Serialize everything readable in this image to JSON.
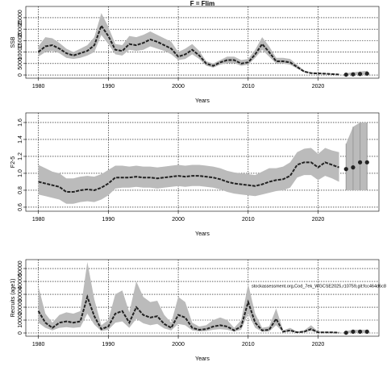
{
  "chart_data": [
    {
      "type": "line",
      "title": "F = Flim",
      "ylabel": "SSB",
      "xlabel": "Years",
      "x": [
        1980,
        1981,
        1982,
        1983,
        1984,
        1985,
        1986,
        1987,
        1988,
        1989,
        1990,
        1991,
        1992,
        1993,
        1994,
        1995,
        1996,
        1997,
        1998,
        1999,
        2000,
        2001,
        2002,
        2003,
        2004,
        2005,
        2006,
        2007,
        2008,
        2009,
        2010,
        2011,
        2012,
        2013,
        2014,
        2015,
        2016,
        2017,
        2018,
        2019,
        2020,
        2021,
        2022,
        2023
      ],
      "values": [
        10000,
        12500,
        13000,
        11500,
        9500,
        8500,
        9500,
        10500,
        13000,
        21500,
        17000,
        11000,
        10500,
        13500,
        13000,
        14000,
        15500,
        14500,
        13000,
        11500,
        8000,
        9000,
        11000,
        8500,
        5000,
        4000,
        5500,
        6500,
        6500,
        5000,
        5500,
        9000,
        13500,
        10000,
        6000,
        6000,
        5500,
        3500,
        1500,
        800,
        700,
        600,
        400,
        200
      ],
      "lower": [
        8000,
        10000,
        10500,
        9500,
        7500,
        7000,
        7500,
        8500,
        10000,
        17500,
        13500,
        9000,
        8500,
        11000,
        10500,
        11000,
        12500,
        11500,
        10500,
        9000,
        6500,
        7000,
        9000,
        7000,
        4000,
        3200,
        4500,
        5200,
        5200,
        4000,
        4500,
        7500,
        11000,
        8000,
        5000,
        5000,
        4500,
        2800,
        1200,
        600,
        500,
        400,
        250,
        100
      ],
      "upper": [
        12500,
        16500,
        16000,
        14000,
        11500,
        10000,
        11500,
        13000,
        16500,
        27000,
        21000,
        13500,
        13000,
        17000,
        16500,
        17500,
        19000,
        17500,
        16000,
        14500,
        10000,
        11500,
        13500,
        10500,
        6000,
        5000,
        6500,
        8000,
        8000,
        6500,
        7000,
        11000,
        16500,
        12500,
        7500,
        7500,
        7000,
        4500,
        2000,
        1100,
        900,
        800,
        600,
        400
      ],
      "projection_x": [
        2024,
        2025,
        2026,
        2027
      ],
      "projection_values": [
        150,
        300,
        450,
        600
      ],
      "projection_lower": [
        0,
        0,
        0,
        0
      ],
      "projection_upper": [
        800,
        1200,
        1500,
        1800
      ],
      "color": "#222222",
      "band_color": "#bbbbbb",
      "xlim": [
        1978.2,
        2028.7
      ],
      "xticks": [
        1980,
        1990,
        2000,
        2010,
        2020
      ],
      "ylim": [
        -1400,
        29900
      ],
      "yticks": [
        0,
        5000,
        10000,
        15000,
        20000,
        25000
      ],
      "grid": true
    },
    {
      "type": "line",
      "ylabel": "F2-5",
      "xlabel": "Years",
      "x": [
        1980,
        1981,
        1982,
        1983,
        1984,
        1985,
        1986,
        1987,
        1988,
        1989,
        1990,
        1991,
        1992,
        1993,
        1994,
        1995,
        1996,
        1997,
        1998,
        1999,
        2000,
        2001,
        2002,
        2003,
        2004,
        2005,
        2006,
        2007,
        2008,
        2009,
        2010,
        2011,
        2012,
        2013,
        2014,
        2015,
        2016,
        2017,
        2018,
        2019,
        2020,
        2021,
        2022,
        2023
      ],
      "values": [
        0.9,
        0.88,
        0.86,
        0.84,
        0.78,
        0.78,
        0.8,
        0.81,
        0.8,
        0.83,
        0.88,
        0.95,
        0.95,
        0.95,
        0.96,
        0.95,
        0.95,
        0.94,
        0.95,
        0.96,
        0.97,
        0.96,
        0.97,
        0.97,
        0.96,
        0.95,
        0.93,
        0.9,
        0.88,
        0.87,
        0.86,
        0.85,
        0.87,
        0.9,
        0.92,
        0.93,
        0.97,
        1.1,
        1.13,
        1.13,
        1.07,
        1.13,
        1.1,
        1.07
      ],
      "lower": [
        0.75,
        0.73,
        0.71,
        0.69,
        0.64,
        0.64,
        0.66,
        0.67,
        0.66,
        0.69,
        0.74,
        0.82,
        0.83,
        0.83,
        0.84,
        0.83,
        0.83,
        0.82,
        0.83,
        0.84,
        0.85,
        0.84,
        0.85,
        0.85,
        0.84,
        0.83,
        0.81,
        0.78,
        0.76,
        0.75,
        0.74,
        0.73,
        0.75,
        0.77,
        0.79,
        0.8,
        0.83,
        0.95,
        0.98,
        0.98,
        0.92,
        0.97,
        0.94,
        0.9
      ],
      "upper": [
        1.1,
        1.06,
        1.02,
        1.0,
        0.94,
        0.94,
        0.96,
        0.97,
        0.96,
        0.99,
        1.04,
        1.09,
        1.09,
        1.08,
        1.09,
        1.08,
        1.08,
        1.07,
        1.08,
        1.09,
        1.1,
        1.09,
        1.1,
        1.1,
        1.09,
        1.08,
        1.06,
        1.03,
        1.01,
        1.0,
        0.99,
        0.98,
        1.02,
        1.06,
        1.06,
        1.08,
        1.13,
        1.25,
        1.29,
        1.3,
        1.23,
        1.3,
        1.27,
        1.25
      ],
      "projection_x": [
        2024,
        2025,
        2026,
        2027
      ],
      "projection_values": [
        1.05,
        1.07,
        1.13,
        1.13
      ],
      "projection_lower": [
        0.8,
        0.8,
        0.8,
        0.8
      ],
      "projection_upper": [
        1.35,
        1.55,
        1.6,
        1.6
      ],
      "color": "#222222",
      "band_color": "#bbbbbb",
      "xlim": [
        1978.2,
        2028.7
      ],
      "xticks": [
        1980,
        1990,
        2000,
        2010,
        2020
      ],
      "ylim": [
        0.552,
        1.714
      ],
      "yticks": [
        0.6,
        0.8,
        {
          "value": 1,
          "label": "1.0"
        },
        1.2,
        1.4,
        1.6
      ],
      "grid": true
    },
    {
      "type": "line",
      "ylabel": "Recruits (age1)",
      "xlabel": "Years",
      "annotation": "stockassessment.org,Cod_7ek_WGCSE2025,r10759,git:fcc464d6c8",
      "x": [
        1980,
        1981,
        1982,
        1983,
        1984,
        1985,
        1986,
        1987,
        1988,
        1989,
        1990,
        1991,
        1992,
        1993,
        1994,
        1995,
        1996,
        1997,
        1998,
        1999,
        2000,
        2001,
        2002,
        2003,
        2004,
        2005,
        2006,
        2007,
        2008,
        2009,
        2010,
        2011,
        2012,
        2013,
        2014,
        2015,
        2016,
        2017,
        2018,
        2019,
        2020,
        2021,
        2022,
        2023
      ],
      "values": [
        17000,
        8000,
        4000,
        8000,
        9000,
        8000,
        9000,
        28000,
        13000,
        3000,
        5000,
        15000,
        17000,
        8000,
        20000,
        14000,
        12000,
        13000,
        7000,
        4000,
        14000,
        12000,
        4000,
        2500,
        3000,
        5000,
        6000,
        5000,
        2000,
        5000,
        24000,
        8000,
        2000,
        2500,
        11000,
        1000,
        2000,
        500,
        1000,
        3000,
        500,
        500,
        500,
        200
      ],
      "lower": [
        8000,
        4000,
        2000,
        4000,
        4500,
        4000,
        4500,
        15000,
        6500,
        1500,
        2500,
        8000,
        9000,
        4000,
        11000,
        7500,
        6000,
        7000,
        3500,
        2000,
        7000,
        6000,
        2000,
        1200,
        1500,
        2500,
        3000,
        2500,
        1000,
        2500,
        15000,
        4000,
        1000,
        1200,
        6000,
        500,
        1000,
        250,
        500,
        1500,
        250,
        250,
        200,
        50
      ],
      "upper": [
        36000,
        15000,
        8000,
        14000,
        16000,
        15000,
        17000,
        55000,
        26000,
        6000,
        10000,
        30000,
        33000,
        16000,
        40000,
        28000,
        24000,
        25000,
        14000,
        8000,
        28000,
        24000,
        8000,
        5000,
        6000,
        10000,
        12000,
        10000,
        4000,
        10000,
        38000,
        15000,
        4000,
        5000,
        19000,
        2000,
        4000,
        1000,
        2000,
        6000,
        1000,
        1000,
        1000,
        500
      ],
      "projection_x": [
        2024,
        2025,
        2026,
        2027
      ],
      "projection_values": [
        200,
        1000,
        1000,
        1000
      ],
      "projection_lower": [
        0,
        0,
        0,
        0
      ],
      "projection_upper": [
        1500,
        2500,
        2500,
        2500
      ],
      "color": "#222222",
      "band_color": "#bbbbbb",
      "xlim": [
        1978.2,
        2028.7
      ],
      "xticks": [
        1980,
        1990,
        2000,
        2010,
        2020
      ],
      "ylim": [
        -2500,
        56900
      ],
      "yticks": [
        0,
        10000,
        20000,
        30000,
        40000,
        50000
      ],
      "grid": true
    }
  ]
}
